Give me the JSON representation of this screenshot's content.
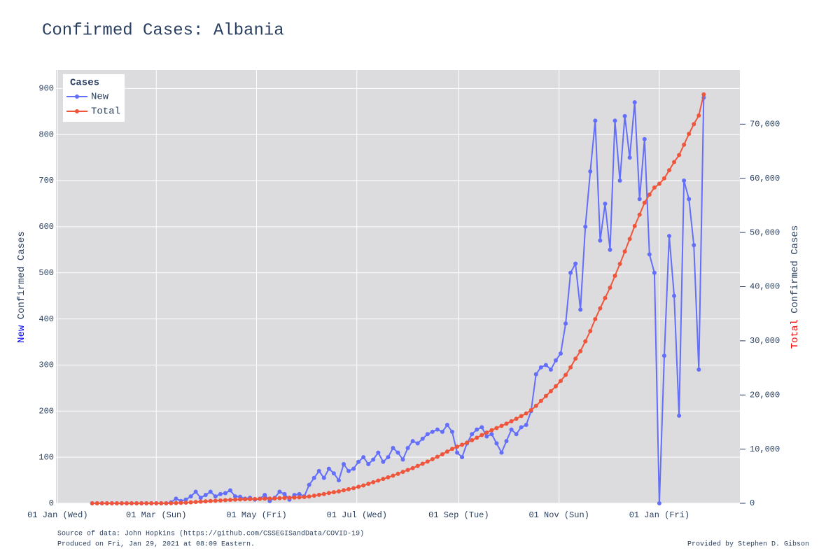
{
  "chart_data": {
    "type": "line",
    "title": "Confirmed Cases: Albania",
    "y_label": {
      "highlight": "New",
      "rest": "Confirmed Cases"
    },
    "y2_label": {
      "highlight": "Total",
      "rest": "Confirmed Cases"
    },
    "legend_title": "Cases",
    "legend": "top-left",
    "grid": true,
    "source": "Source of data: John Hopkins (https://github.com/CSSEGISandData/COVID-19)",
    "produced": "Produced on Fri, Jan 29, 2021 at 08:09 Eastern.",
    "provided": "Provided by Stephen D. Gibson",
    "xlim": [
      -1,
      415
    ],
    "xticks": [
      {
        "value": 0,
        "label": "01 Jan (Wed)"
      },
      {
        "value": 60,
        "label": "01 Mar (Sun)"
      },
      {
        "value": 121,
        "label": "01 May (Fri)"
      },
      {
        "value": 182,
        "label": "01 Jul (Wed)"
      },
      {
        "value": 244,
        "label": "01 Sep (Tue)"
      },
      {
        "value": 305,
        "label": "01 Nov (Sun)"
      },
      {
        "value": 366,
        "label": "01 Jan (Fri)"
      }
    ],
    "ylim": [
      0,
      940
    ],
    "yticks": [
      0,
      100,
      200,
      300,
      400,
      500,
      600,
      700,
      800,
      900
    ],
    "y2lim": [
      0,
      80000
    ],
    "y2ticks": [
      0,
      {
        "value": 10000,
        "label": "10,000"
      },
      {
        "value": 20000,
        "label": "20,000"
      },
      {
        "value": 30000,
        "label": "30,000"
      },
      {
        "value": 40000,
        "label": "40,000"
      },
      {
        "value": 50000,
        "label": "50,000"
      },
      {
        "value": 60000,
        "label": "60,000"
      },
      {
        "value": 70000,
        "label": "70,000"
      }
    ],
    "x": [
      21,
      24,
      27,
      30,
      33,
      36,
      39,
      42,
      45,
      48,
      51,
      54,
      57,
      60,
      63,
      66,
      69,
      72,
      75,
      78,
      81,
      84,
      87,
      90,
      93,
      96,
      99,
      102,
      105,
      108,
      111,
      114,
      117,
      120,
      123,
      126,
      129,
      132,
      135,
      138,
      141,
      144,
      147,
      150,
      153,
      156,
      159,
      162,
      165,
      168,
      171,
      174,
      177,
      180,
      183,
      186,
      189,
      192,
      195,
      198,
      201,
      204,
      207,
      210,
      213,
      216,
      219,
      222,
      225,
      228,
      231,
      234,
      237,
      240,
      243,
      246,
      249,
      252,
      255,
      258,
      261,
      264,
      267,
      270,
      273,
      276,
      279,
      282,
      285,
      288,
      291,
      294,
      297,
      300,
      303,
      306,
      309,
      312,
      315,
      318,
      321,
      324,
      327,
      330,
      333,
      336,
      339,
      342,
      345,
      348,
      351,
      354,
      357,
      360,
      363,
      366,
      369,
      372,
      375,
      378,
      381,
      384,
      387,
      390,
      393
    ],
    "series": [
      {
        "name": "New",
        "color": "#636efa",
        "values": [
          0,
          0,
          0,
          0,
          0,
          0,
          0,
          0,
          0,
          0,
          0,
          0,
          0,
          0,
          0,
          0,
          2,
          10,
          5,
          8,
          15,
          25,
          12,
          18,
          25,
          15,
          20,
          22,
          28,
          15,
          14,
          10,
          12,
          8,
          10,
          18,
          5,
          12,
          25,
          20,
          8,
          18,
          20,
          15,
          40,
          55,
          70,
          55,
          75,
          65,
          50,
          85,
          70,
          75,
          90,
          100,
          85,
          95,
          110,
          90,
          100,
          120,
          110,
          95,
          120,
          135,
          130,
          140,
          150,
          155,
          160,
          155,
          170,
          155,
          110,
          100,
          130,
          150,
          160,
          165,
          145,
          150,
          130,
          110,
          135,
          160,
          150,
          165,
          170,
          200,
          280,
          295,
          300,
          290,
          310,
          325,
          390,
          500,
          520,
          420,
          600,
          720,
          830,
          570,
          650,
          550,
          830,
          700,
          840,
          750,
          870,
          660,
          790,
          540,
          500,
          0,
          320,
          580,
          450,
          190,
          700,
          660,
          560,
          290,
          880
        ]
      },
      {
        "name": "Total",
        "color": "#ef553b",
        "axis": "y2",
        "values": [
          0,
          0,
          0,
          0,
          0,
          0,
          0,
          0,
          0,
          0,
          0,
          0,
          0,
          0,
          0,
          0,
          10,
          50,
          80,
          120,
          180,
          250,
          300,
          360,
          420,
          470,
          520,
          580,
          630,
          680,
          720,
          760,
          780,
          790,
          820,
          850,
          880,
          900,
          950,
          990,
          1020,
          1060,
          1100,
          1160,
          1260,
          1400,
          1560,
          1720,
          1900,
          2050,
          2200,
          2400,
          2600,
          2800,
          3050,
          3300,
          3600,
          3900,
          4200,
          4500,
          4800,
          5100,
          5450,
          5800,
          6150,
          6500,
          6900,
          7300,
          7700,
          8150,
          8600,
          9050,
          9550,
          10050,
          10450,
          10800,
          11200,
          11650,
          12100,
          12600,
          13050,
          13500,
          13900,
          14300,
          14700,
          15150,
          15600,
          16100,
          16600,
          17200,
          18000,
          18900,
          19800,
          20700,
          21600,
          22600,
          23700,
          25100,
          26700,
          28100,
          29900,
          31800,
          34000,
          36000,
          37900,
          39800,
          42000,
          44200,
          46500,
          48800,
          51200,
          53300,
          55500,
          57000,
          58300,
          59000,
          60000,
          61500,
          63000,
          64300,
          66200,
          68200,
          70000,
          71600,
          75500
        ]
      }
    ]
  }
}
